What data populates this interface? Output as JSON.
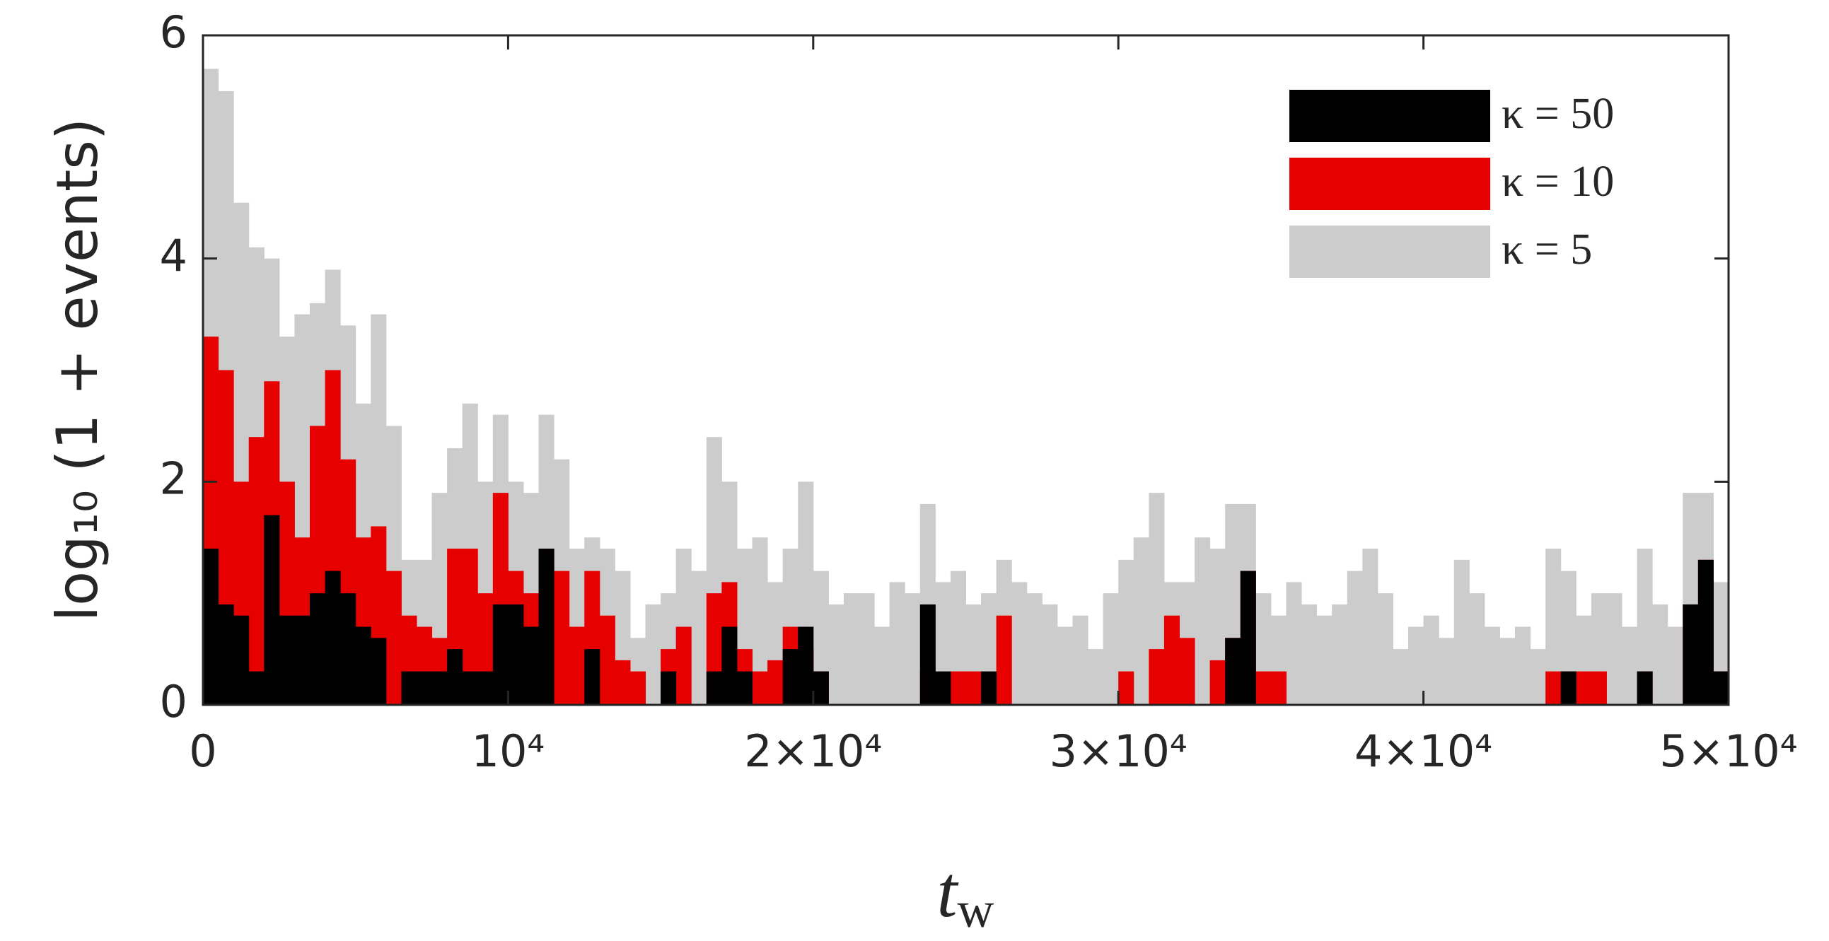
{
  "chart_data": {
    "type": "histogram",
    "xlabel": {
      "main": "t",
      "sub": "w"
    },
    "ylabel": "log₁₀ (1 + events)",
    "bins": [
      0,
      500,
      1000,
      1500,
      2000,
      2500,
      3000,
      3500,
      4000,
      4500,
      5000,
      5500,
      6000,
      6500,
      7000,
      7500,
      8000,
      8500,
      9000,
      9500,
      10000,
      10500,
      11000,
      11500,
      12000,
      12500,
      13000,
      13500,
      14000,
      14500,
      15000,
      15500,
      16000,
      16500,
      17000,
      17500,
      18000,
      18500,
      19000,
      19500,
      20000,
      20500,
      21000,
      21500,
      22000,
      22500,
      23000,
      23500,
      24000,
      24500,
      25000,
      25500,
      26000,
      26500,
      27000,
      27500,
      28000,
      28500,
      29000,
      29500,
      30000,
      30500,
      31000,
      31500,
      32000,
      32500,
      33000,
      33500,
      34000,
      34500,
      35000,
      35500,
      36000,
      36500,
      37000,
      37500,
      38000,
      38500,
      39000,
      39500,
      40000,
      40500,
      41000,
      41500,
      42000,
      42500,
      43000,
      43500,
      44000,
      44500,
      45000,
      45500,
      46000,
      46500,
      47000,
      47500,
      48000,
      48500,
      49000,
      49500,
      50000
    ],
    "series": [
      {
        "name": "κ = 50",
        "color": "#000000",
        "values": [
          1.4,
          0.9,
          0.8,
          0.3,
          1.7,
          0.8,
          0.8,
          1.0,
          1.2,
          1.0,
          0.7,
          0.6,
          0,
          0.3,
          0.3,
          0.3,
          0.5,
          0.3,
          0.3,
          0.9,
          0.9,
          0.7,
          1.4,
          0,
          0,
          0.5,
          0,
          0,
          0,
          0,
          0.3,
          0,
          0,
          0.3,
          0.7,
          0.3,
          0,
          0,
          0.5,
          0.7,
          0.3,
          0,
          0,
          0,
          0,
          0,
          0,
          0.9,
          0.3,
          0,
          0,
          0.3,
          0,
          0,
          0,
          0,
          0,
          0,
          0,
          0,
          0,
          0,
          0,
          0,
          0,
          0,
          0,
          0.6,
          1.2,
          0,
          0,
          0,
          0,
          0,
          0,
          0,
          0,
          0,
          0,
          0,
          0,
          0,
          0,
          0,
          0,
          0,
          0,
          0,
          0,
          0.3,
          0,
          0,
          0,
          0,
          0.3,
          0,
          0,
          0.9,
          1.3,
          0.3
        ]
      },
      {
        "name": "κ = 10",
        "color": "#e60000",
        "values": [
          3.3,
          3.0,
          2.0,
          2.4,
          2.9,
          2.0,
          1.5,
          2.5,
          3.0,
          2.2,
          1.5,
          1.6,
          1.2,
          0.8,
          0.7,
          0.6,
          1.4,
          1.4,
          1.0,
          1.9,
          1.2,
          1.0,
          1.4,
          1.2,
          0.7,
          1.2,
          0.8,
          0.4,
          0.3,
          0,
          0.5,
          0.7,
          0,
          1.0,
          1.1,
          0.5,
          0.3,
          0.4,
          0.7,
          0.5,
          0.3,
          0,
          0,
          0,
          0,
          0,
          0,
          0.3,
          0,
          0.3,
          0.3,
          0,
          0.8,
          0,
          0,
          0,
          0,
          0,
          0,
          0,
          0.3,
          0,
          0.5,
          0.8,
          0.6,
          0,
          0.4,
          0.6,
          1.2,
          0.3,
          0.3,
          0,
          0,
          0,
          0,
          0,
          0,
          0,
          0,
          0,
          0,
          0,
          0,
          0,
          0,
          0,
          0,
          0,
          0.3,
          0.3,
          0.3,
          0.3,
          0,
          0,
          0.3,
          0,
          0,
          0.9,
          1.3,
          0.3
        ]
      },
      {
        "name": "κ = 5",
        "color": "#cccccc",
        "values": [
          5.7,
          5.5,
          4.5,
          4.1,
          4.0,
          3.3,
          3.5,
          3.6,
          3.9,
          3.4,
          2.7,
          3.5,
          2.5,
          1.3,
          1.3,
          1.9,
          2.3,
          2.7,
          2.0,
          2.6,
          2.0,
          1.9,
          2.6,
          2.2,
          1.4,
          1.5,
          1.4,
          1.2,
          0.6,
          0.9,
          1.0,
          1.4,
          1.2,
          2.4,
          2.0,
          1.4,
          1.5,
          1.1,
          1.4,
          2.0,
          1.2,
          0.9,
          1.0,
          1.0,
          0.7,
          1.1,
          1.0,
          1.8,
          1.1,
          1.2,
          0.9,
          1.0,
          1.3,
          1.1,
          1.0,
          0.9,
          0.7,
          0.8,
          0.5,
          1.0,
          1.3,
          1.5,
          1.9,
          1.1,
          1.1,
          1.5,
          1.4,
          1.8,
          1.8,
          1.0,
          0.8,
          1.1,
          0.9,
          0.8,
          0.9,
          1.2,
          1.4,
          1.0,
          0.5,
          0.7,
          0.8,
          0.6,
          1.3,
          1.0,
          0.7,
          0.6,
          0.7,
          0.5,
          1.4,
          1.2,
          0.8,
          1.0,
          1.0,
          0.7,
          1.4,
          0.9,
          0.7,
          1.9,
          1.9,
          1.1
        ]
      }
    ],
    "xlim": [
      0,
      50000
    ],
    "ylim": [
      0,
      6
    ],
    "xticks": [
      0,
      {
        "value": 10000,
        "label": "10⁴"
      },
      {
        "value": 20000,
        "label": "2×10⁴"
      },
      {
        "value": 30000,
        "label": "3×10⁴"
      },
      {
        "value": 40000,
        "label": "4×10⁴"
      },
      {
        "value": 50000,
        "label": "5×10⁴"
      }
    ],
    "yticks": [
      0,
      2,
      4,
      6
    ],
    "legend": "top-right"
  }
}
